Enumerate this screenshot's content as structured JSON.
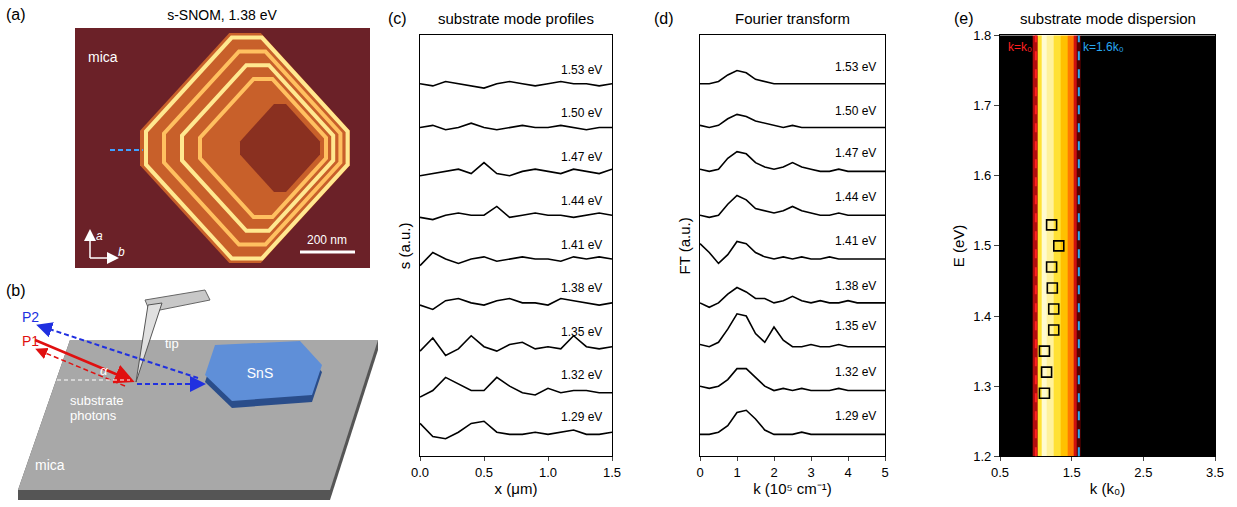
{
  "panels": {
    "a": {
      "letter": "(a)",
      "title": "s-SNOM, 1.38 eV",
      "labels": {
        "substrate": "mica",
        "axis_a": "a",
        "axis_b": "b",
        "scale_bar": "200 nm"
      }
    },
    "b": {
      "letter": "(b)",
      "labels": {
        "beam_2": "P2",
        "beam_1": "P1",
        "tip": "tip",
        "angle": "α",
        "photons": "substrate photons",
        "flake": "SnS",
        "substrate": "mica"
      }
    }
  },
  "chart_data": [
    {
      "letter": "(c)",
      "type": "line",
      "title": "substrate mode profiles",
      "x_label": "x (μm)",
      "y_label": "s (a.u.)",
      "x": [
        0,
        0.1,
        0.2,
        0.3,
        0.4,
        0.5,
        0.6,
        0.7,
        0.8,
        0.9,
        1.0,
        1.1,
        1.2,
        1.3,
        1.4,
        1.5
      ],
      "series": [
        {
          "name": "1.29 eV",
          "color": "black",
          "values": [
            0.75,
            0.45,
            0.4,
            0.55,
            0.75,
            0.8,
            0.55,
            0.5,
            0.5,
            0.55,
            0.5,
            0.55,
            0.6,
            0.5,
            0.5,
            0.55
          ]
        },
        {
          "name": "1.32 eV",
          "color": "black",
          "values": [
            1.35,
            1.5,
            1.8,
            1.65,
            1.5,
            1.5,
            1.8,
            1.6,
            1.45,
            1.4,
            1.55,
            1.45,
            1.5,
            1.5,
            1.45,
            1.45
          ]
        },
        {
          "name": "1.35 eV",
          "color": "black",
          "values": [
            2.4,
            2.7,
            2.3,
            2.45,
            2.75,
            2.5,
            2.4,
            2.55,
            2.6,
            2.45,
            2.5,
            2.45,
            2.75,
            2.5,
            2.45,
            2.5
          ]
        },
        {
          "name": "1.38 eV",
          "color": "black",
          "values": [
            3.45,
            3.35,
            3.55,
            3.6,
            3.5,
            3.45,
            3.55,
            3.6,
            3.5,
            3.5,
            3.45,
            3.6,
            3.55,
            3.5,
            3.45,
            3.5
          ]
        },
        {
          "name": "1.41 eV",
          "color": "black",
          "values": [
            4.35,
            4.65,
            4.5,
            4.4,
            4.5,
            4.55,
            4.45,
            4.5,
            4.55,
            4.5,
            4.5,
            4.45,
            4.55,
            4.5,
            4.55,
            4.5
          ]
        },
        {
          "name": "1.44 eV",
          "color": "black",
          "values": [
            5.45,
            5.4,
            5.5,
            5.55,
            5.5,
            5.5,
            5.7,
            5.45,
            5.5,
            5.55,
            5.5,
            5.5,
            5.45,
            5.5,
            5.55,
            5.5
          ]
        },
        {
          "name": "1.47 eV",
          "color": "black",
          "values": [
            6.4,
            6.45,
            6.5,
            6.55,
            6.45,
            6.7,
            6.45,
            6.4,
            6.5,
            6.55,
            6.5,
            6.45,
            6.55,
            6.5,
            6.45,
            6.55
          ]
        },
        {
          "name": "1.50 eV",
          "color": "black",
          "values": [
            7.5,
            7.55,
            7.45,
            7.5,
            7.6,
            7.5,
            7.45,
            7.5,
            7.55,
            7.5,
            7.5,
            7.55,
            7.5,
            7.45,
            7.5,
            7.5
          ]
        },
        {
          "name": "1.53 eV",
          "color": "black",
          "values": [
            8.5,
            8.45,
            8.55,
            8.5,
            8.45,
            8.4,
            8.5,
            8.55,
            8.5,
            8.45,
            8.5,
            8.55,
            8.5,
            8.5,
            8.45,
            8.5
          ]
        }
      ],
      "xlim": [
        0,
        1.5
      ],
      "ylim": [
        0,
        9.6
      ],
      "xticks": [
        {
          "value": 0,
          "label": "0.0"
        },
        0.5,
        {
          "value": 1,
          "label": "1.0"
        },
        1.5
      ],
      "tick_labels": "x"
    },
    {
      "letter": "(d)",
      "type": "line",
      "title": "Fourier transform",
      "x_label": "k (10⁵ cm⁻¹)",
      "y_label": "FT (a.u.)",
      "x": [
        0,
        0.25,
        0.5,
        0.75,
        1,
        1.25,
        1.5,
        1.75,
        2,
        2.25,
        2.5,
        2.75,
        3,
        3.25,
        3.5,
        3.75,
        4,
        4.25,
        4.5,
        4.75,
        5
      ],
      "series": [
        {
          "name": "1.29 eV",
          "color": "black",
          "values": [
            0.5,
            0.5,
            0.55,
            0.7,
            1.0,
            1.05,
            0.85,
            0.6,
            0.5,
            0.5,
            0.5,
            0.55,
            0.5,
            0.5,
            0.5,
            0.5,
            0.5,
            0.5,
            0.5,
            0.5,
            0.5
          ]
        },
        {
          "name": "1.32 eV",
          "color": "black",
          "values": [
            1.6,
            1.55,
            1.6,
            1.75,
            2.0,
            2.0,
            1.8,
            1.6,
            1.5,
            1.55,
            1.5,
            1.55,
            1.5,
            1.5,
            1.5,
            1.55,
            1.5,
            1.5,
            1.5,
            1.5,
            1.5
          ]
        },
        {
          "name": "1.35 eV",
          "color": "black",
          "values": [
            2.55,
            2.5,
            2.6,
            2.9,
            3.25,
            3.2,
            2.8,
            2.6,
            2.95,
            2.65,
            2.5,
            2.5,
            2.55,
            2.5,
            2.5,
            2.55,
            2.5,
            2.5,
            2.5,
            2.5,
            2.5
          ]
        },
        {
          "name": "1.38 eV",
          "color": "black",
          "values": [
            3.5,
            3.4,
            3.5,
            3.7,
            3.85,
            3.75,
            3.6,
            3.6,
            3.5,
            3.55,
            3.65,
            3.55,
            3.5,
            3.55,
            3.5,
            3.5,
            3.55,
            3.5,
            3.5,
            3.5,
            3.5
          ]
        },
        {
          "name": "1.41 eV",
          "color": "black",
          "values": [
            4.85,
            4.65,
            4.4,
            4.6,
            4.9,
            4.85,
            4.65,
            4.55,
            4.5,
            4.55,
            4.5,
            4.55,
            4.5,
            4.5,
            4.55,
            4.5,
            4.5,
            4.5,
            4.5,
            4.5,
            4.5
          ]
        },
        {
          "name": "1.44 eV",
          "color": "black",
          "values": [
            5.5,
            5.45,
            5.5,
            5.75,
            5.95,
            5.85,
            5.65,
            5.6,
            5.55,
            5.6,
            5.7,
            5.6,
            5.55,
            5.5,
            5.5,
            5.55,
            5.5,
            5.5,
            5.5,
            5.5,
            5.5
          ]
        },
        {
          "name": "1.47 eV",
          "color": "black",
          "values": [
            6.55,
            6.5,
            6.55,
            6.8,
            6.95,
            6.9,
            6.7,
            6.6,
            6.55,
            6.6,
            6.7,
            6.6,
            6.55,
            6.5,
            6.5,
            6.55,
            6.5,
            6.5,
            6.5,
            6.5,
            6.5
          ]
        },
        {
          "name": "1.50 eV",
          "color": "black",
          "values": [
            7.55,
            7.5,
            7.55,
            7.7,
            7.8,
            7.75,
            7.65,
            7.6,
            7.55,
            7.5,
            7.55,
            7.5,
            7.5,
            7.5,
            7.5,
            7.5,
            7.5,
            7.5,
            7.5,
            7.5,
            7.5
          ]
        },
        {
          "name": "1.53 eV",
          "color": "black",
          "values": [
            8.5,
            8.5,
            8.55,
            8.7,
            8.8,
            8.75,
            8.6,
            8.55,
            8.5,
            8.5,
            8.5,
            8.5,
            8.5,
            8.5,
            8.5,
            8.5,
            8.5,
            8.5,
            8.5,
            8.5,
            8.5
          ]
        }
      ],
      "xlim": [
        0,
        5
      ],
      "ylim": [
        0,
        9.6
      ],
      "xticks": [
        0,
        1,
        2,
        3,
        4,
        5
      ],
      "tick_labels": "x"
    },
    {
      "letter": "(e)",
      "type": "heatmap",
      "title": "substrate mode dispersion",
      "x_label": "k (k₀)",
      "y_label": "E (eV)",
      "heatmap": {
        "x": [
          0.5,
          0.9,
          1.0,
          1.05,
          1.1,
          1.2,
          1.3,
          1.4,
          1.5,
          1.55,
          1.6,
          1.65,
          3.5
        ],
        "y": [
          1.2,
          1.8
        ],
        "z": [
          [
            0,
            0,
            0.35,
            0.85,
            1.0,
            0.95,
            0.85,
            0.75,
            0.6,
            0.4,
            0.2,
            0,
            0
          ],
          [
            0,
            0,
            0.35,
            0.85,
            1.0,
            0.95,
            0.85,
            0.75,
            0.6,
            0.4,
            0.2,
            0,
            0
          ]
        ]
      },
      "points": {
        "x": [
          1.12,
          1.15,
          1.12,
          1.25,
          1.25,
          1.23,
          1.22,
          1.32,
          1.22
        ],
        "y": [
          1.29,
          1.32,
          1.35,
          1.38,
          1.41,
          1.44,
          1.47,
          1.5,
          1.53
        ],
        "marker": "square-open",
        "color": "black"
      },
      "lines": [
        {
          "x": 1.0,
          "label": "k=k₀",
          "color": "#ff2020",
          "line_style": "dash"
        },
        {
          "x": 1.6,
          "label": "k=1.6k₀",
          "color": "#29a8f0",
          "line_style": "dash"
        }
      ],
      "xlim": [
        0.5,
        3.5
      ],
      "ylim": [
        1.2,
        1.8
      ],
      "xticks": [
        0.5,
        1.5,
        2.5,
        3.5
      ],
      "yticks": [
        1.2,
        1.3,
        1.4,
        1.5,
        1.6,
        1.7,
        1.8
      ]
    }
  ]
}
